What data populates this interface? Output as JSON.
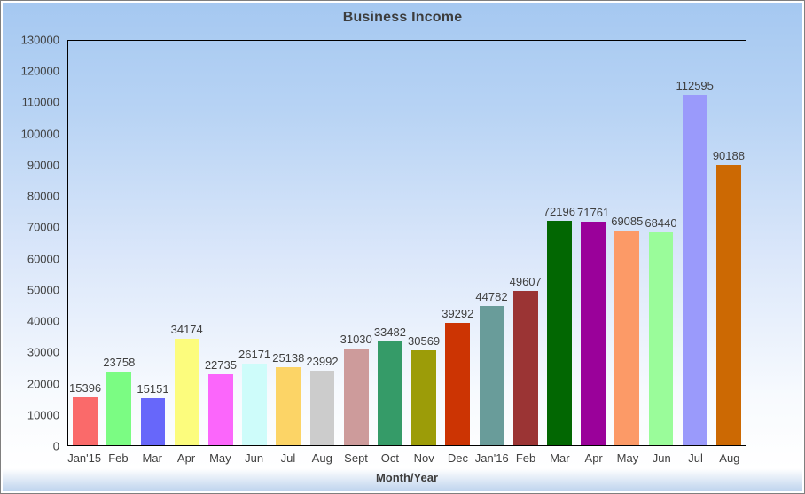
{
  "chart_data": {
    "type": "bar",
    "title": "Business Income",
    "xlabel": "Month/Year",
    "ylabel": "",
    "ylim": [
      0,
      130000
    ],
    "y_ticks": [
      0,
      10000,
      20000,
      30000,
      40000,
      50000,
      60000,
      70000,
      80000,
      90000,
      100000,
      110000,
      120000,
      130000
    ],
    "grid": false,
    "legend_position": "none",
    "categories": [
      "Jan'15",
      "Feb",
      "Mar",
      "Apr",
      "May",
      "Jun",
      "Jul",
      "Aug",
      "Sept",
      "Oct",
      "Nov",
      "Dec",
      "Jan'16",
      "Feb",
      "Mar",
      "Apr",
      "May",
      "Jun",
      "Jul",
      "Aug"
    ],
    "values": [
      15396,
      23758,
      15151,
      34174,
      22735,
      26171,
      25138,
      23992,
      31030,
      33482,
      30569,
      39292,
      44782,
      49607,
      72196,
      71761,
      69085,
      68440,
      112595,
      90188
    ],
    "bar_colors": [
      "#fa6a6a",
      "#7bfc83",
      "#6767fa",
      "#fcfc7d",
      "#fb66fb",
      "#cefcfa",
      "#fcd466",
      "#cccccc",
      "#cd9b9b",
      "#359b68",
      "#9c9c08",
      "#cc3403",
      "#699c9a",
      "#9b3434",
      "#026702",
      "#9a019a",
      "#fc9a67",
      "#9afc9a",
      "#9a9afb",
      "#cc6903"
    ]
  },
  "colors": {
    "background_top": "#a5c8f1",
    "background_bottom": "#b9d0ec",
    "plot_border": "#000000",
    "outer_border": "#7f7f7f",
    "text": "#3f3f3f"
  }
}
